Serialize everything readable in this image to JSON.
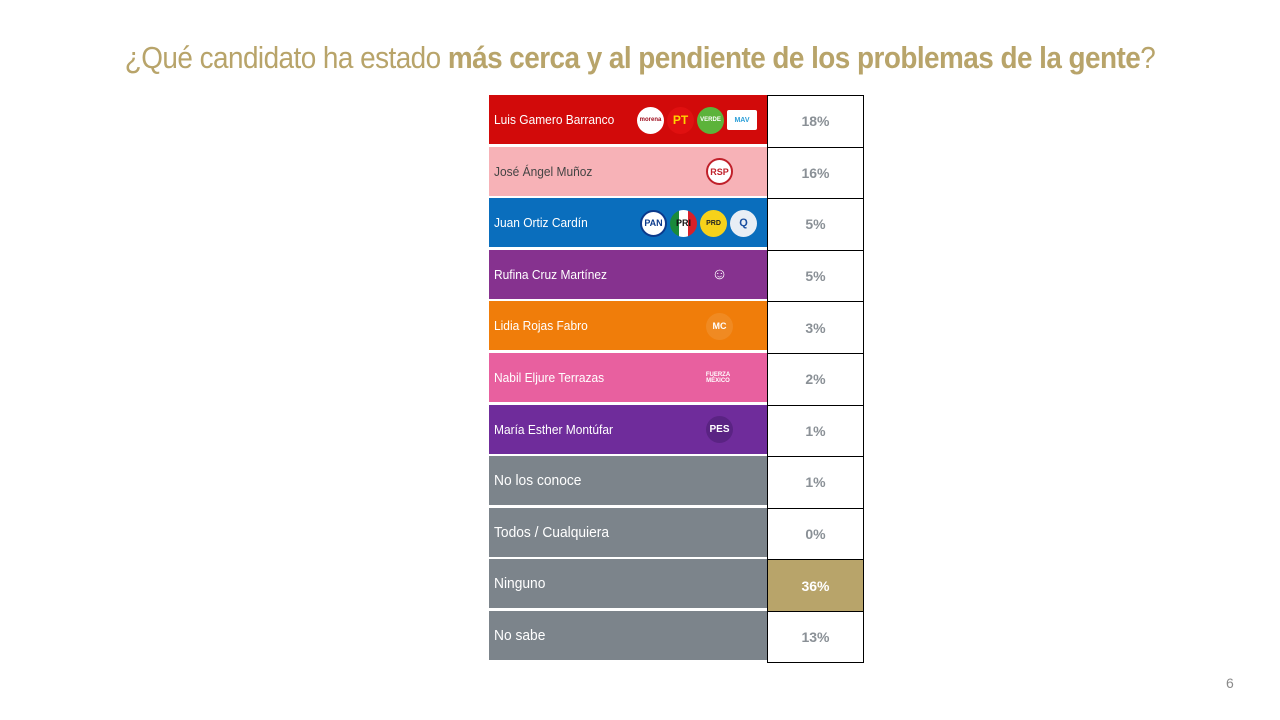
{
  "title": {
    "prefix": "¿Qué candidato ha estado ",
    "bold": "más cerca y al pendiente de los problemas de la gente",
    "suffix": "?"
  },
  "page_number": "6",
  "chart_data": {
    "type": "table",
    "title": "¿Qué candidato ha estado más cerca y al pendiente de los problemas de la gente?",
    "categories": [
      "Luis Gamero Barranco",
      "José Ángel Muñoz",
      "Juan Ortiz Cardín",
      "Rufina Cruz Martínez",
      "Lidia Rojas Fabro",
      "Nabil Eljure Terrazas",
      "María Esther Montúfar",
      "No los conoce",
      "Todos / Cualquiera",
      "Ninguno",
      "No sabe"
    ],
    "values": [
      18,
      16,
      5,
      5,
      3,
      2,
      1,
      1,
      0,
      36,
      13
    ],
    "unit": "%",
    "rows": [
      {
        "label": "Luis Gamero Barranco",
        "value": "18%",
        "color": "#d20a0a",
        "logos": [
          "morena",
          "PT",
          "VERDE",
          "MAV"
        ]
      },
      {
        "label": "José Ángel Muñoz",
        "value": "16%",
        "color": "#f7b2b7",
        "logos": [
          "RSP"
        ]
      },
      {
        "label": "Juan Ortiz Cardín",
        "value": "5%",
        "color": "#0a6ebd",
        "logos": [
          "PAN",
          "PRI",
          "PRD",
          "CONFIANZA"
        ]
      },
      {
        "label": "Rufina Cruz Martínez",
        "value": "5%",
        "color": "#86328f",
        "logos": [
          "CANDIDATURA INDEPENDIENTE"
        ]
      },
      {
        "label": "Lidia Rojas Fabro",
        "value": "3%",
        "color": "#f07d0a",
        "logos": [
          "MOVIMIENTO CIUDADANO"
        ]
      },
      {
        "label": "Nabil Eljure Terrazas",
        "value": "2%",
        "color": "#e8609f",
        "logos": [
          "FUERZA MÉXICO"
        ]
      },
      {
        "label": "María Esther Montúfar",
        "value": "1%",
        "color": "#6f2c9b",
        "logos": [
          "PES"
        ]
      },
      {
        "label": "No los conoce",
        "value": "1%",
        "color": "#7c848b",
        "logos": []
      },
      {
        "label": "Todos / Cualquiera",
        "value": "0%",
        "color": "#7c848b",
        "logos": []
      },
      {
        "label": "Ninguno",
        "value": "36%",
        "color": "#7c848b",
        "logos": [],
        "highlight": true
      },
      {
        "label": "No sabe",
        "value": "13%",
        "color": "#7c848b",
        "logos": []
      }
    ],
    "highlight_color": "#b8a46a"
  },
  "colors": {
    "title": "#b8a46a",
    "value_text": "#8a9096",
    "highlight": "#b8a46a"
  }
}
